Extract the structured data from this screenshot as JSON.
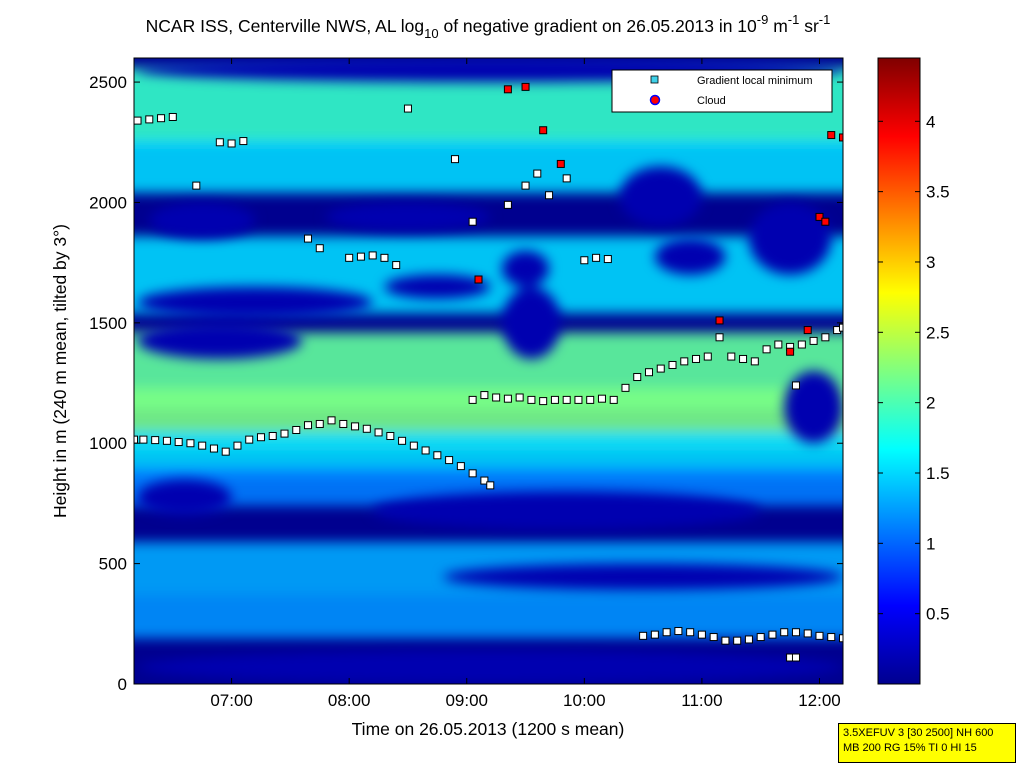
{
  "chart_data": {
    "type": "heatmap",
    "title_parts": {
      "main": "NCAR ISS, Centerville NWS, AL log",
      "sub": "10",
      "middle": " of negative gradient on 26.05.2013 in 10",
      "exp1": "-9",
      "unit_m": " m",
      "exp2": "-1",
      "unit_sr": " sr",
      "exp3": "-1"
    },
    "xlabel": "Time on 26.05.2013 (1200 s mean)",
    "ylabel": "Height in m (240 m mean, tilted by 3°)",
    "xlim": [
      6.17,
      12.2
    ],
    "ylim": [
      0,
      2600
    ],
    "x_ticks": [
      {
        "value": 7,
        "label": "07:00"
      },
      {
        "value": 8,
        "label": "08:00"
      },
      {
        "value": 9,
        "label": "09:00"
      },
      {
        "value": 10,
        "label": "10:00"
      },
      {
        "value": 11,
        "label": "11:00"
      },
      {
        "value": 12,
        "label": "12:00"
      }
    ],
    "y_ticks": [
      {
        "value": 0,
        "label": "0"
      },
      {
        "value": 500,
        "label": "500"
      },
      {
        "value": 1000,
        "label": "1000"
      },
      {
        "value": 1500,
        "label": "1500"
      },
      {
        "value": 2000,
        "label": "2000"
      },
      {
        "value": 2500,
        "label": "2500"
      }
    ],
    "colorbar": {
      "range": [
        0,
        4.45
      ],
      "ticks": [
        {
          "value": 0.5,
          "label": "0.5"
        },
        {
          "value": 1,
          "label": "1"
        },
        {
          "value": 1.5,
          "label": "1.5"
        },
        {
          "value": 2,
          "label": "2"
        },
        {
          "value": 2.5,
          "label": "2.5"
        },
        {
          "value": 3,
          "label": "3"
        },
        {
          "value": 3.5,
          "label": "3.5"
        },
        {
          "value": 4,
          "label": "4"
        }
      ]
    },
    "legend": {
      "position": "top-right",
      "entries": [
        {
          "label": "Gradient local minimum",
          "marker": "square",
          "color": "#3fd0e8"
        },
        {
          "label": "Cloud",
          "marker": "circle",
          "color": "#ff0000",
          "edge": "#0000ff"
        }
      ]
    },
    "heatmap_layers": [
      {
        "y": 2400,
        "value": 1.9,
        "h": 320
      },
      {
        "y": 2150,
        "value": 1.5,
        "h": 220
      },
      {
        "y": 1700,
        "value": 1.5,
        "h": 320
      },
      {
        "y": 1300,
        "value": 2.1,
        "h": 320
      },
      {
        "y": 1100,
        "value": 2.2,
        "h": 260
      },
      {
        "y": 950,
        "value": 1.5,
        "h": 200
      },
      {
        "y": 820,
        "value": 1.1,
        "h": 160
      },
      {
        "y": 480,
        "value": 1.3,
        "h": 220
      },
      {
        "y": 280,
        "value": 1.2,
        "h": 180
      }
    ],
    "low_regions": [
      {
        "x": [
          6.2,
          7.6
        ],
        "y": [
          1350,
          1500
        ]
      },
      {
        "x": [
          6.2,
          8.2
        ],
        "y": [
          1520,
          1650
        ]
      },
      {
        "x": [
          6.3,
          7.2
        ],
        "y": [
          1850,
          2000
        ]
      },
      {
        "x": [
          7.8,
          9.2
        ],
        "y": [
          1880,
          2000
        ]
      },
      {
        "x": [
          8.3,
          9.2
        ],
        "y": [
          1600,
          1700
        ]
      },
      {
        "x": [
          9.3,
          9.7
        ],
        "y": [
          1650,
          1800
        ]
      },
      {
        "x": [
          10.3,
          11.0
        ],
        "y": [
          1900,
          2150
        ]
      },
      {
        "x": [
          10.6,
          11.2
        ],
        "y": [
          1700,
          1850
        ]
      },
      {
        "x": [
          11.4,
          12.1
        ],
        "y": [
          1700,
          2000
        ]
      },
      {
        "x": [
          11.7,
          12.2
        ],
        "y": [
          1000,
          1300
        ]
      },
      {
        "x": [
          8.2,
          11.5
        ],
        "y": [
          640,
          800
        ]
      },
      {
        "x": [
          6.2,
          7.0
        ],
        "y": [
          700,
          850
        ]
      },
      {
        "x": [
          6.2,
          12.2
        ],
        "y": [
          0,
          140
        ]
      },
      {
        "x": [
          8.8,
          12.2
        ],
        "y": [
          390,
          500
        ]
      },
      {
        "x": [
          9.3,
          9.8
        ],
        "y": [
          1350,
          1650
        ]
      },
      {
        "x": [
          6.2,
          12.2
        ],
        "y": [
          2500,
          2600
        ]
      }
    ],
    "series": [
      {
        "name": "Gradient local minimum",
        "points": [
          [
            6.17,
            1015
          ],
          [
            6.25,
            1015
          ],
          [
            6.35,
            1013
          ],
          [
            6.45,
            1010
          ],
          [
            6.55,
            1005
          ],
          [
            6.65,
            1000
          ],
          [
            6.75,
            990
          ],
          [
            6.85,
            978
          ],
          [
            6.95,
            965
          ],
          [
            7.05,
            990
          ],
          [
            7.15,
            1015
          ],
          [
            7.25,
            1025
          ],
          [
            7.35,
            1030
          ],
          [
            7.45,
            1040
          ],
          [
            7.55,
            1055
          ],
          [
            7.65,
            1075
          ],
          [
            7.75,
            1080
          ],
          [
            7.85,
            1095
          ],
          [
            7.95,
            1080
          ],
          [
            8.05,
            1070
          ],
          [
            8.15,
            1060
          ],
          [
            8.25,
            1045
          ],
          [
            8.35,
            1030
          ],
          [
            8.45,
            1010
          ],
          [
            8.55,
            990
          ],
          [
            8.65,
            970
          ],
          [
            8.75,
            950
          ],
          [
            8.85,
            930
          ],
          [
            8.95,
            905
          ],
          [
            9.05,
            875
          ],
          [
            9.15,
            845
          ],
          [
            9.2,
            825
          ],
          [
            9.05,
            1180
          ],
          [
            9.15,
            1200
          ],
          [
            9.25,
            1190
          ],
          [
            9.35,
            1185
          ],
          [
            9.45,
            1190
          ],
          [
            9.55,
            1180
          ],
          [
            9.65,
            1175
          ],
          [
            9.75,
            1180
          ],
          [
            9.85,
            1180
          ],
          [
            9.95,
            1180
          ],
          [
            10.05,
            1180
          ],
          [
            10.15,
            1185
          ],
          [
            10.25,
            1180
          ],
          [
            10.35,
            1230
          ],
          [
            10.45,
            1275
          ],
          [
            10.55,
            1295
          ],
          [
            10.65,
            1310
          ],
          [
            10.75,
            1325
          ],
          [
            10.85,
            1340
          ],
          [
            10.95,
            1350
          ],
          [
            11.05,
            1360
          ],
          [
            11.15,
            1440
          ],
          [
            11.25,
            1360
          ],
          [
            11.35,
            1350
          ],
          [
            11.45,
            1340
          ],
          [
            11.55,
            1390
          ],
          [
            11.65,
            1410
          ],
          [
            11.75,
            1400
          ],
          [
            11.85,
            1410
          ],
          [
            11.95,
            1425
          ],
          [
            12.05,
            1440
          ],
          [
            12.15,
            1470
          ],
          [
            12.2,
            1480
          ],
          [
            10.5,
            200
          ],
          [
            10.6,
            205
          ],
          [
            10.7,
            215
          ],
          [
            10.8,
            220
          ],
          [
            10.9,
            215
          ],
          [
            11.0,
            205
          ],
          [
            11.1,
            195
          ],
          [
            11.2,
            180
          ],
          [
            11.3,
            180
          ],
          [
            11.4,
            185
          ],
          [
            11.5,
            195
          ],
          [
            11.6,
            205
          ],
          [
            11.7,
            215
          ],
          [
            11.8,
            215
          ],
          [
            11.9,
            210
          ],
          [
            12.0,
            200
          ],
          [
            12.1,
            195
          ],
          [
            12.2,
            190
          ],
          [
            6.2,
            2340
          ],
          [
            6.3,
            2345
          ],
          [
            6.4,
            2350
          ],
          [
            6.5,
            2355
          ],
          [
            6.7,
            2070
          ],
          [
            6.9,
            2250
          ],
          [
            7.0,
            2245
          ],
          [
            7.1,
            2255
          ],
          [
            7.65,
            1850
          ],
          [
            7.75,
            1810
          ],
          [
            8.0,
            1770
          ],
          [
            8.1,
            1775
          ],
          [
            8.2,
            1780
          ],
          [
            8.3,
            1770
          ],
          [
            8.4,
            1740
          ],
          [
            8.5,
            2390
          ],
          [
            8.9,
            2180
          ],
          [
            9.05,
            1920
          ],
          [
            9.35,
            1990
          ],
          [
            9.5,
            2070
          ],
          [
            9.6,
            2120
          ],
          [
            9.7,
            2030
          ],
          [
            9.85,
            2100
          ],
          [
            10.0,
            1760
          ],
          [
            10.1,
            1770
          ],
          [
            10.2,
            1765
          ],
          [
            11.8,
            1240
          ],
          [
            11.75,
            110
          ],
          [
            11.8,
            110
          ]
        ]
      },
      {
        "name": "Cloud",
        "points": [
          [
            9.35,
            2470
          ],
          [
            9.5,
            2480
          ],
          [
            9.65,
            2300
          ],
          [
            9.8,
            2160
          ],
          [
            9.1,
            1680
          ],
          [
            11.15,
            1510
          ],
          [
            11.75,
            1380
          ],
          [
            11.9,
            1470
          ],
          [
            12.0,
            1940
          ],
          [
            12.05,
            1920
          ],
          [
            12.1,
            2280
          ],
          [
            12.2,
            2270
          ]
        ]
      }
    ]
  },
  "info_box": {
    "line1": "3.5XEFUV 3 [30 2500] NH 600",
    "line2": "MB 200 RG 15% TI 0 HI 15"
  }
}
